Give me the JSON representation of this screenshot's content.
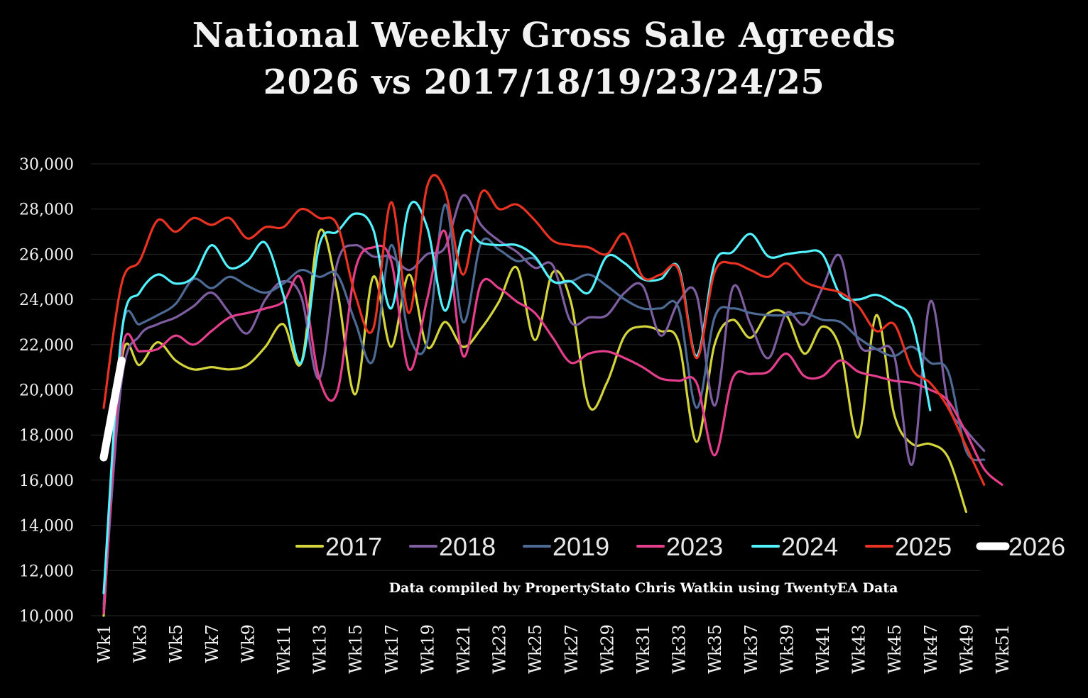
{
  "chart_data": {
    "type": "line",
    "title": "National Weekly Gross Sale Agreeds",
    "subtitle": "2026 vs 2017/18/19/23/24/25",
    "annotation": "Data compiled by PropertyStato Chris Watkin using TwentyEA Data",
    "ylim": [
      10000,
      30000
    ],
    "y_ticks": [
      "10,000",
      "12,000",
      "14,000",
      "16,000",
      "18,000",
      "20,000",
      "22,000",
      "24,000",
      "26,000",
      "28,000",
      "30,000"
    ],
    "x_ticks": [
      "Wk1",
      "Wk3",
      "Wk5",
      "Wk7",
      "Wk9",
      "Wk11",
      "Wk13",
      "Wk15",
      "Wk17",
      "Wk19",
      "Wk21",
      "Wk23",
      "Wk25",
      "Wk27",
      "Wk29",
      "Wk31",
      "Wk33",
      "Wk35",
      "Wk37",
      "Wk39",
      "Wk41",
      "Wk43",
      "Wk45",
      "Wk47",
      "Wk49",
      "Wk51"
    ],
    "grid": "horizontal",
    "legend_position": "bottom-right",
    "background": "#000000",
    "series": [
      {
        "name": "2017",
        "color": "#d4d43c",
        "values": [
          10000,
          21300,
          21100,
          22100,
          21300,
          20900,
          21000,
          20900,
          21100,
          21900,
          22900,
          21200,
          27000,
          24400,
          19800,
          25000,
          21900,
          25100,
          21900,
          23000,
          21900,
          22700,
          23900,
          25400,
          22200,
          25200,
          23900,
          19300,
          20300,
          22400,
          22800,
          22600,
          22100,
          17700,
          22000,
          23100,
          22300,
          23400,
          23300,
          21600,
          22800,
          21800,
          17900,
          23300,
          18900,
          17600,
          17600,
          17000,
          14600
        ]
      },
      {
        "name": "2018",
        "color": "#7e5ea0",
        "values": [
          10300,
          20400,
          22400,
          22900,
          23200,
          23700,
          24300,
          23400,
          22500,
          24000,
          24800,
          24100,
          20500,
          25600,
          26400,
          25900,
          25900,
          25300,
          26000,
          26300,
          28600,
          27300,
          26600,
          26100,
          25400,
          25500,
          23000,
          23200,
          23300,
          24300,
          24600,
          22400,
          23900,
          24200,
          19300,
          24500,
          22900,
          21400,
          23400,
          22900,
          24500,
          25900,
          22100,
          21800,
          21500,
          16700,
          23900,
          19400,
          18200,
          17300
        ]
      },
      {
        "name": "2019",
        "color": "#4c6a94",
        "values": [
          10500,
          22500,
          22900,
          23300,
          23800,
          24900,
          24500,
          25000,
          24600,
          24300,
          24700,
          25300,
          25000,
          25100,
          23000,
          21300,
          26400,
          22400,
          22100,
          28200,
          23000,
          26500,
          26200,
          25700,
          25800,
          24800,
          24800,
          25100,
          24600,
          24000,
          23600,
          23600,
          23600,
          19200,
          23200,
          23600,
          23400,
          23300,
          23300,
          23400,
          23100,
          23000,
          22300,
          21800,
          21500,
          21900,
          21200,
          20800,
          17300,
          16900
        ]
      },
      {
        "name": "2023",
        "color": "#e43e8c",
        "values": [
          10100,
          21600,
          21700,
          21800,
          22400,
          22000,
          22600,
          23200,
          23400,
          23600,
          23900,
          24900,
          20500,
          19900,
          25300,
          26300,
          25700,
          20900,
          24000,
          27000,
          21500,
          24700,
          24500,
          23900,
          23400,
          22300,
          21200,
          21600,
          21700,
          21400,
          21000,
          20500,
          20400,
          20300,
          17100,
          20500,
          20700,
          20800,
          21600,
          20600,
          20600,
          21300,
          20800,
          20600,
          20400,
          20300,
          20000,
          19500,
          18100,
          16500,
          15800
        ]
      },
      {
        "name": "2024",
        "color": "#52f2ff",
        "values": [
          11000,
          22500,
          24300,
          25100,
          24700,
          25000,
          26400,
          25400,
          25700,
          26500,
          24200,
          21200,
          26400,
          27000,
          27800,
          27100,
          23600,
          28100,
          27200,
          23500,
          26900,
          26500,
          26400,
          26400,
          25900,
          24800,
          24800,
          24300,
          25900,
          25600,
          24900,
          24900,
          25400,
          21500,
          25600,
          26100,
          26900,
          25900,
          26000,
          26100,
          26000,
          24200,
          24000,
          24200,
          23800,
          23000,
          19100
        ]
      },
      {
        "name": "2025",
        "color": "#e83222",
        "values": [
          19200,
          24700,
          25700,
          27500,
          27000,
          27600,
          27300,
          27600,
          26700,
          27200,
          27200,
          28000,
          27600,
          27300,
          24200,
          22700,
          28300,
          23400,
          29000,
          28800,
          25100,
          28700,
          28000,
          28200,
          27500,
          26600,
          26400,
          26300,
          26000,
          26900,
          25000,
          25100,
          25300,
          21400,
          25200,
          25600,
          25300,
          25000,
          25600,
          24800,
          24500,
          24300,
          23700,
          22600,
          22900,
          20900,
          20300,
          19200,
          17500,
          15800
        ]
      },
      {
        "name": "2026",
        "color": "#ffffff",
        "values": [
          17000,
          21300
        ]
      }
    ]
  }
}
